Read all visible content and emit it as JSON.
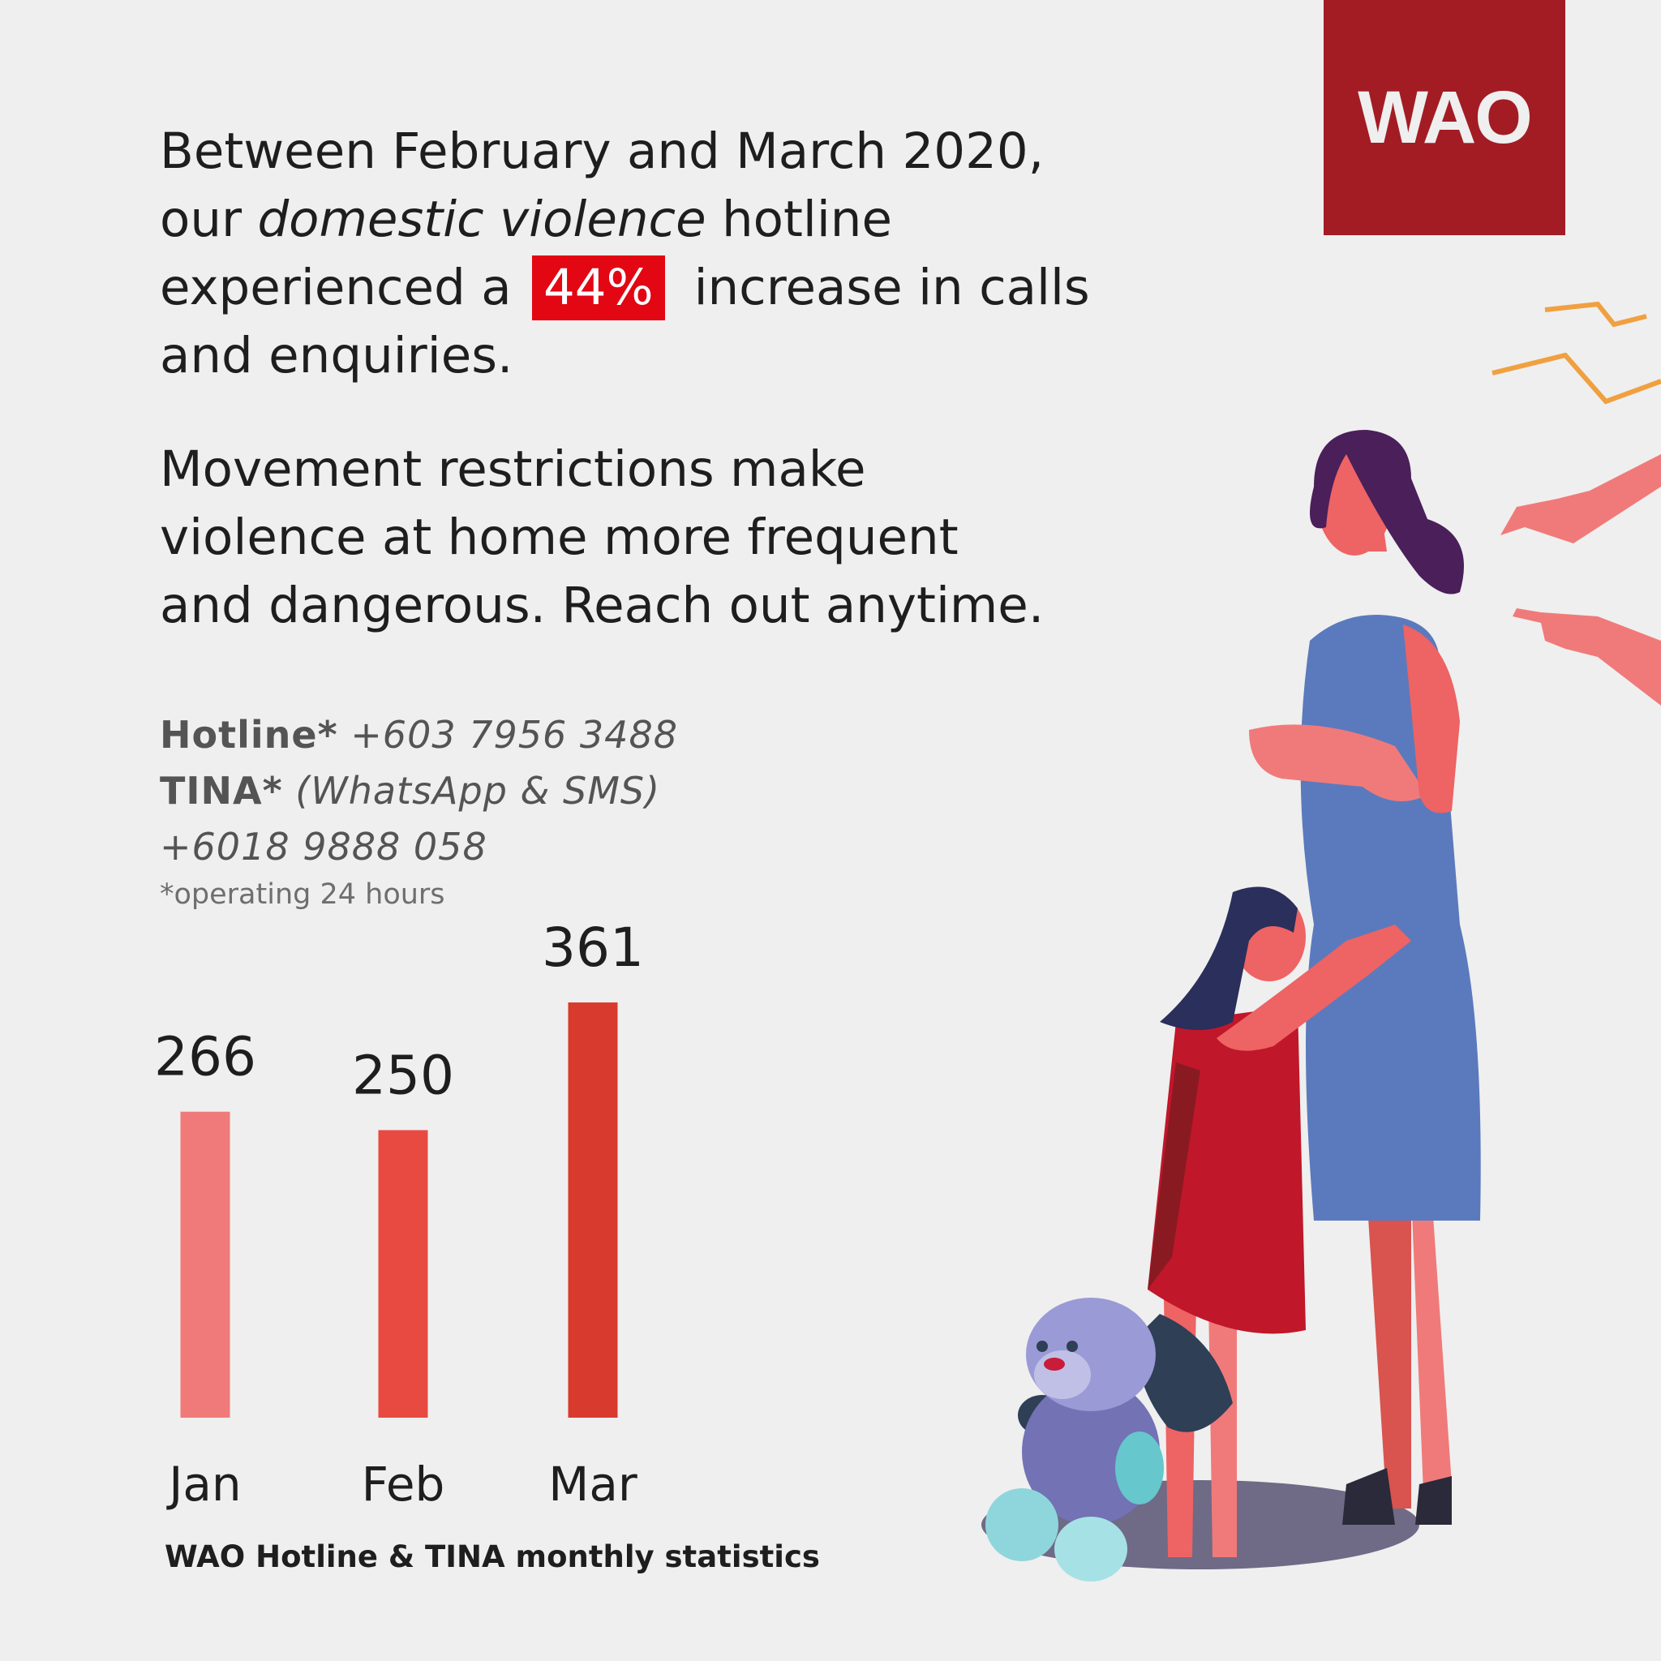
{
  "logo": {
    "text": "WAO",
    "color": "#a31c24"
  },
  "headline": {
    "line1": "Between February and March 2020,",
    "line2_pre": "our ",
    "line2_em": "domestic violence",
    "line2_post": " hotline",
    "line3_pre": "experienced a",
    "highlight": "44%",
    "line3_post": "increase in calls",
    "line4": "and enquiries."
  },
  "subhead": {
    "line1": "Movement restrictions make",
    "line2": "violence at home more frequent",
    "line3": "and dangerous. Reach out anytime."
  },
  "contact": {
    "hotline_label": "Hotline*",
    "hotline_number": "+603 7956 3488",
    "tina_label": "TINA*",
    "tina_channels": "(WhatsApp & SMS)",
    "tina_number": "+6018 9888 058",
    "note": "*operating 24 hours"
  },
  "chart_data": {
    "type": "bar",
    "title": "WAO Hotline & TINA monthly statistics",
    "categories": [
      "Jan",
      "Feb",
      "Mar"
    ],
    "values": [
      266,
      250,
      361
    ],
    "colors": [
      "#f07a7a",
      "#e84a41",
      "#d93a2e"
    ],
    "ylim": [
      0,
      361
    ],
    "grid": false,
    "legend": "none"
  }
}
